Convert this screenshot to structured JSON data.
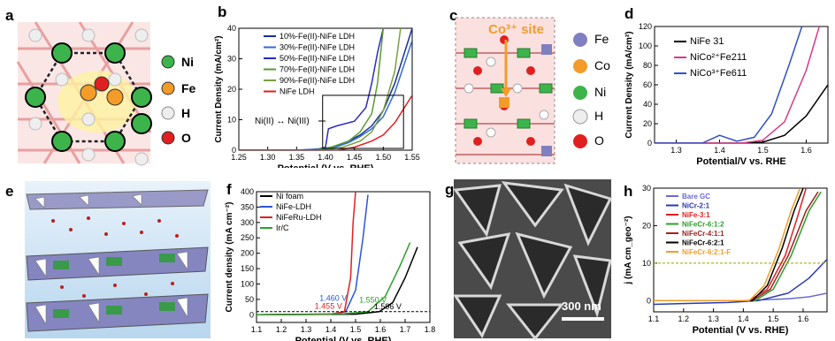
{
  "panels": {
    "a": {
      "label": "a",
      "legend": [
        {
          "text": "Ni",
          "color": "#3cb44b"
        },
        {
          "text": "Fe",
          "color": "#f39c2a"
        },
        {
          "text": "H",
          "color": "#e6e6e6"
        },
        {
          "text": "O",
          "color": "#e02020"
        }
      ]
    },
    "b": {
      "label": "b",
      "ylabel": "Current Density (mA/cm²)",
      "xlabel": "Potential (V vs. RHE)",
      "xticks": [
        "1.25",
        "1.30",
        "1.35",
        "1.40",
        "1.45",
        "1.50",
        "1.55"
      ],
      "yticks": [
        "0",
        "10",
        "20",
        "30",
        "40"
      ],
      "annotation": "Ni(II) ↔ Ni(III)"
    },
    "c": {
      "label": "c",
      "site_label": "Co³⁺ site",
      "legend": [
        {
          "text": "Fe",
          "color": "#8080c0"
        },
        {
          "text": "Co",
          "color": "#f39c2a"
        },
        {
          "text": "Ni",
          "color": "#3cb44b"
        },
        {
          "text": "H",
          "color": "#e6e6e6"
        },
        {
          "text": "O",
          "color": "#e02020"
        }
      ]
    },
    "d": {
      "label": "d",
      "ylabel": "Current Density (mA/cm²)",
      "xlabel": "Potential/V vs. RHE",
      "xticks": [
        "1.3",
        "1.4",
        "1.5",
        "1.6"
      ],
      "yticks": [
        "0",
        "20",
        "40",
        "60",
        "80",
        "100",
        "120"
      ]
    },
    "e": {
      "label": "e"
    },
    "f": {
      "label": "f",
      "ylabel": "Current density (mA cm⁻²)",
      "xlabel": "Potential (V vs. RHE)",
      "xticks": [
        "1.1",
        "1.2",
        "1.3",
        "1.4",
        "1.5",
        "1.6",
        "1.7",
        "1.8"
      ],
      "yticks": [
        "0",
        "50",
        "100",
        "150",
        "200",
        "250",
        "300",
        "350",
        "400"
      ],
      "annotations": [
        {
          "text": "1.460 V",
          "color": "#2a56d6"
        },
        {
          "text": "1.455 V",
          "color": "#e02020"
        },
        {
          "text": "1.550 V",
          "color": "#2aa02a"
        },
        {
          "text": "1.596 V",
          "color": "#000000"
        }
      ]
    },
    "g": {
      "label": "g",
      "scalebar": "300 nm"
    },
    "h": {
      "label": "h",
      "ylabel": "j (mA cm_geo⁻²)",
      "xlabel": "Potential (V vs. RHE)",
      "xticks": [
        "1.1",
        "1.2",
        "1.3",
        "1.4",
        "1.5",
        "1.6"
      ],
      "yticks": [
        "0",
        "10",
        "20",
        "30"
      ]
    }
  },
  "chart_data": [
    {
      "panel": "b",
      "type": "line",
      "xlabel": "Potential (V vs. RHE)",
      "ylabel": "Current Density (mA/cm²)",
      "xlim": [
        1.25,
        1.55
      ],
      "ylim": [
        0,
        40
      ],
      "series": [
        {
          "name": "10%-Fe(II)-NiFe LDH",
          "color": "#1a2f9a",
          "x": [
            1.25,
            1.35,
            1.4,
            1.42,
            1.44,
            1.46,
            1.48,
            1.5,
            1.52,
            1.55
          ],
          "y": [
            0,
            0,
            0.5,
            1.5,
            3,
            5,
            8,
            13,
            22,
            40
          ]
        },
        {
          "name": "30%-Fe(II)-NiFe LDH",
          "color": "#2f6bd6",
          "x": [
            1.25,
            1.35,
            1.4,
            1.42,
            1.44,
            1.46,
            1.48,
            1.5,
            1.52,
            1.55
          ],
          "y": [
            0,
            0,
            0.4,
            1.2,
            2.5,
            4.5,
            7,
            11,
            19,
            36
          ]
        },
        {
          "name": "50%-Fe(II)-NiFe LDH",
          "color": "#2a2ac0",
          "x": [
            1.25,
            1.38,
            1.4,
            1.405,
            1.42,
            1.45,
            1.47,
            1.48,
            1.49,
            1.5
          ],
          "y": [
            0,
            0,
            1,
            7,
            8,
            9.5,
            14,
            22,
            32,
            40
          ]
        },
        {
          "name": "70%-Fe(II)-NiFe LDH",
          "color": "#5a9a30",
          "x": [
            1.25,
            1.38,
            1.41,
            1.44,
            1.46,
            1.48,
            1.49,
            1.5
          ],
          "y": [
            0,
            0,
            1,
            3,
            6,
            12,
            22,
            40
          ]
        },
        {
          "name": "90%-Fe(II)-NiFe LDH",
          "color": "#7aa040",
          "x": [
            1.25,
            1.4,
            1.43,
            1.46,
            1.48,
            1.5,
            1.52,
            1.53
          ],
          "y": [
            0,
            0,
            1,
            3,
            6,
            13,
            26,
            40
          ]
        },
        {
          "name": "NiFe LDH",
          "color": "#e02020",
          "x": [
            1.25,
            1.42,
            1.45,
            1.48,
            1.5,
            1.52,
            1.55
          ],
          "y": [
            0,
            0,
            1,
            3,
            5,
            9,
            18
          ]
        }
      ]
    },
    {
      "panel": "d",
      "type": "line",
      "xlabel": "Potential/V vs. RHE",
      "ylabel": "Current Density (mA/cm²)",
      "xlim": [
        1.25,
        1.65
      ],
      "ylim": [
        0,
        120
      ],
      "series": [
        {
          "name": "NiFe 31",
          "color": "#000000",
          "x": [
            1.25,
            1.45,
            1.5,
            1.55,
            1.6,
            1.65
          ],
          "y": [
            0,
            0,
            1,
            8,
            28,
            60
          ]
        },
        {
          "name": "NiCo²⁺Fe211",
          "color": "#d63a8a",
          "x": [
            1.25,
            1.45,
            1.5,
            1.55,
            1.6,
            1.63
          ],
          "y": [
            0,
            0,
            3,
            22,
            75,
            120
          ]
        },
        {
          "name": "NiCo³⁺Fe611",
          "color": "#3050c8",
          "x": [
            1.25,
            1.36,
            1.4,
            1.44,
            1.48,
            1.52,
            1.56,
            1.59
          ],
          "y": [
            0,
            0,
            8,
            2,
            6,
            30,
            80,
            120
          ]
        }
      ]
    },
    {
      "panel": "f",
      "type": "line",
      "xlabel": "Potential (V vs. RHE)",
      "ylabel": "Current density (mA cm⁻²)",
      "xlim": [
        1.1,
        1.8
      ],
      "ylim": [
        -25,
        400
      ],
      "series": [
        {
          "name": "Ni foam",
          "color": "#000000",
          "x": [
            1.1,
            1.5,
            1.596,
            1.65,
            1.7,
            1.75
          ],
          "y": [
            0,
            2,
            10,
            40,
            120,
            220
          ]
        },
        {
          "name": "NiFe-LDH",
          "color": "#2a56d6",
          "x": [
            1.1,
            1.4,
            1.46,
            1.5,
            1.53,
            1.55
          ],
          "y": [
            0,
            2,
            10,
            80,
            250,
            390
          ]
        },
        {
          "name": "NiFeRu-LDH",
          "color": "#e02020",
          "x": [
            1.1,
            1.4,
            1.455,
            1.48,
            1.49,
            1.5
          ],
          "y": [
            0,
            2,
            10,
            120,
            300,
            400
          ]
        },
        {
          "name": "Ir/C",
          "color": "#2aa02a",
          "x": [
            1.1,
            1.45,
            1.55,
            1.62,
            1.68,
            1.72
          ],
          "y": [
            0,
            3,
            10,
            60,
            160,
            235
          ]
        }
      ]
    },
    {
      "panel": "h",
      "type": "line",
      "xlabel": "Potential (V vs. RHE)",
      "ylabel": "j (mA cm_geo⁻²)",
      "xlim": [
        1.1,
        1.68
      ],
      "ylim": [
        -3,
        30
      ],
      "series": [
        {
          "name": "Bare GC",
          "color": "#6a6ad0",
          "x": [
            1.1,
            1.4,
            1.55,
            1.62,
            1.68
          ],
          "y": [
            0,
            0,
            0.5,
            1,
            2
          ]
        },
        {
          "name": "NiCr-2:1",
          "color": "#2a3ab0",
          "x": [
            1.1,
            1.35,
            1.45,
            1.55,
            1.62,
            1.68
          ],
          "y": [
            -1,
            -0.5,
            0,
            2,
            6,
            11
          ]
        },
        {
          "name": "NiFe-3:1",
          "color": "#e02020",
          "x": [
            1.1,
            1.42,
            1.48,
            1.54,
            1.58,
            1.61
          ],
          "y": [
            0,
            0,
            3,
            12,
            22,
            30
          ]
        },
        {
          "name": "NiFeCr-6:1:2",
          "color": "#2aa02a",
          "x": [
            1.1,
            1.44,
            1.5,
            1.56,
            1.62,
            1.66
          ],
          "y": [
            0,
            0,
            3,
            12,
            24,
            29
          ]
        },
        {
          "name": "NiFeCr-4:1:1",
          "color": "#a02020",
          "x": [
            1.1,
            1.43,
            1.49,
            1.55,
            1.61,
            1.65
          ],
          "y": [
            0,
            0,
            3,
            12,
            24,
            29
          ]
        },
        {
          "name": "NiFeCr-6:2:1",
          "color": "#000000",
          "x": [
            1.1,
            1.43,
            1.48,
            1.53,
            1.57,
            1.6
          ],
          "y": [
            0,
            0,
            4,
            14,
            24,
            30
          ]
        },
        {
          "name": "NiFeCr-6:2:1-F",
          "color": "#f39c2a",
          "x": [
            1.1,
            1.42,
            1.47,
            1.52,
            1.56,
            1.59
          ],
          "y": [
            0,
            0,
            4,
            14,
            24,
            30
          ]
        }
      ]
    }
  ]
}
